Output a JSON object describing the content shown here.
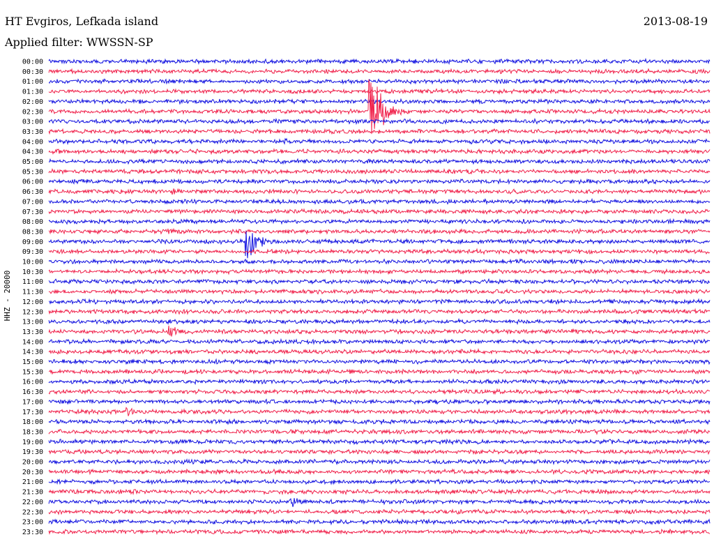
{
  "header": {
    "station": "HT Evgiros, Lefkada island",
    "date": "2013-08-19",
    "filter": "Applied filter: WWSSN-SP"
  },
  "colors": {
    "trace_a": "#1010e0",
    "trace_b": "#f0204a",
    "background": "#ffffff",
    "text": "#000000"
  },
  "chart_data": {
    "type": "line",
    "ylabel": "HHZ - 20000",
    "xlabel": "",
    "title": "",
    "grid": false,
    "legend": "none",
    "row_labels": [
      "00:00",
      "00:30",
      "01:00",
      "01:30",
      "02:00",
      "02:30",
      "03:00",
      "03:30",
      "04:00",
      "04:30",
      "05:00",
      "05:30",
      "06:00",
      "06:30",
      "07:00",
      "07:30",
      "08:00",
      "08:30",
      "09:00",
      "09:30",
      "10:00",
      "10:30",
      "11:00",
      "11:30",
      "12:00",
      "12:30",
      "13:00",
      "13:30",
      "14:00",
      "14:30",
      "15:00",
      "15:30",
      "16:00",
      "16:30",
      "17:00",
      "17:30",
      "18:00",
      "18:30",
      "19:00",
      "19:30",
      "20:00",
      "20:30",
      "21:00",
      "21:30",
      "22:00",
      "22:30",
      "23:00",
      "23:30"
    ],
    "row_duration_minutes": 30,
    "row_colors": [
      "blue",
      "red"
    ],
    "events": [
      {
        "row": "00:00",
        "minute": 26.5,
        "amplitude": 0.5
      },
      {
        "row": "00:30",
        "minute": 21.2,
        "amplitude": 1.2
      },
      {
        "row": "01:00",
        "minute": 20.5,
        "amplitude": 2.0
      },
      {
        "row": "01:00",
        "minute": 19.6,
        "amplitude": 0.8
      },
      {
        "row": "01:30",
        "minute": 0.6,
        "amplitude": 1.1
      },
      {
        "row": "02:00",
        "minute": 17.9,
        "amplitude": 1.0
      },
      {
        "row": "02:30",
        "minute": 14.6,
        "amplitude": 30.0
      },
      {
        "row": "03:00",
        "minute": 17.5,
        "amplitude": 1.0
      },
      {
        "row": "03:30",
        "minute": 3.0,
        "amplitude": 1.8
      },
      {
        "row": "04:00",
        "minute": 10.7,
        "amplitude": 2.4
      },
      {
        "row": "04:00",
        "minute": 19.2,
        "amplitude": 1.8
      },
      {
        "row": "05:30",
        "minute": 18.0,
        "amplitude": 1.5
      },
      {
        "row": "05:30",
        "minute": 25.3,
        "amplitude": 1.0
      },
      {
        "row": "06:00",
        "minute": 10.7,
        "amplitude": 1.2
      },
      {
        "row": "06:30",
        "minute": 5.7,
        "amplitude": 2.5
      },
      {
        "row": "07:00",
        "minute": 10.5,
        "amplitude": 1.6
      },
      {
        "row": "08:30",
        "minute": 5.5,
        "amplitude": 2.5
      },
      {
        "row": "08:30",
        "minute": 24.0,
        "amplitude": 1.5
      },
      {
        "row": "09:00",
        "minute": 9.0,
        "amplitude": 14.0
      },
      {
        "row": "09:00",
        "minute": 12.5,
        "amplitude": 1.2
      },
      {
        "row": "10:00",
        "minute": 13.3,
        "amplitude": 1.5
      },
      {
        "row": "11:00",
        "minute": 19.5,
        "amplitude": 0.8
      },
      {
        "row": "12:00",
        "minute": 21.3,
        "amplitude": 1.5
      },
      {
        "row": "13:30",
        "minute": 5.5,
        "amplitude": 4.0
      },
      {
        "row": "13:30",
        "minute": 23.8,
        "amplitude": 2.5
      },
      {
        "row": "14:30",
        "minute": 0.5,
        "amplitude": 1.8
      },
      {
        "row": "15:00",
        "minute": 1.2,
        "amplitude": 1.3
      },
      {
        "row": "15:30",
        "minute": 26.7,
        "amplitude": 1.6
      },
      {
        "row": "16:30",
        "minute": 19.0,
        "amplitude": 1.4
      },
      {
        "row": "17:00",
        "minute": 21.6,
        "amplitude": 1.0
      },
      {
        "row": "17:30",
        "minute": 3.6,
        "amplitude": 4.0
      },
      {
        "row": "20:00",
        "minute": 23.6,
        "amplitude": 1.2
      },
      {
        "row": "20:30",
        "minute": 24.9,
        "amplitude": 1.2
      },
      {
        "row": "21:30",
        "minute": 3.9,
        "amplitude": 1.5
      },
      {
        "row": "22:00",
        "minute": 11.0,
        "amplitude": 4.0
      },
      {
        "row": "22:00",
        "minute": 16.2,
        "amplitude": 1.3
      }
    ]
  }
}
